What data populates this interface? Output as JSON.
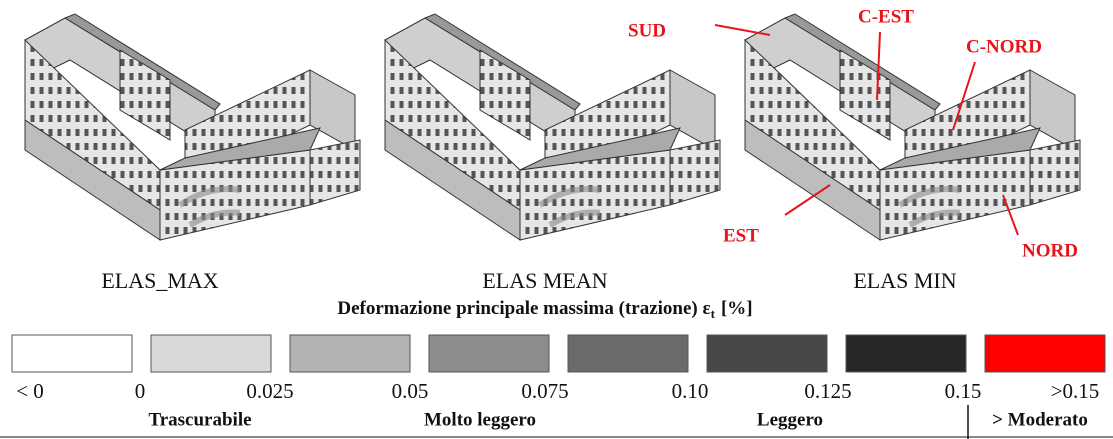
{
  "panels": [
    {
      "label": "ELAS_MAX"
    },
    {
      "label": "ELAS MEAN"
    },
    {
      "label": "ELAS MIN"
    }
  ],
  "annotations": [
    "SUD",
    "C-EST",
    "C-NORD",
    "EST",
    "NORD"
  ],
  "legend": {
    "title": "Deformazione principale massima (trazione) ε",
    "title_subscript": "t",
    "title_unit": "[%]",
    "colors": [
      "#ffffff",
      "#d9d9d9",
      "#b3b3b3",
      "#8c8c8c",
      "#6b6b6b",
      "#474747",
      "#262626",
      "#ff0000"
    ],
    "ticks": [
      "< 0",
      "0",
      "0.025",
      "0.05",
      "0.075",
      "0.10",
      "0.125",
      "0.15",
      ">0.15"
    ],
    "categories": [
      "Trascurabile",
      "Molto leggero",
      "Leggero",
      "> Moderato"
    ]
  }
}
